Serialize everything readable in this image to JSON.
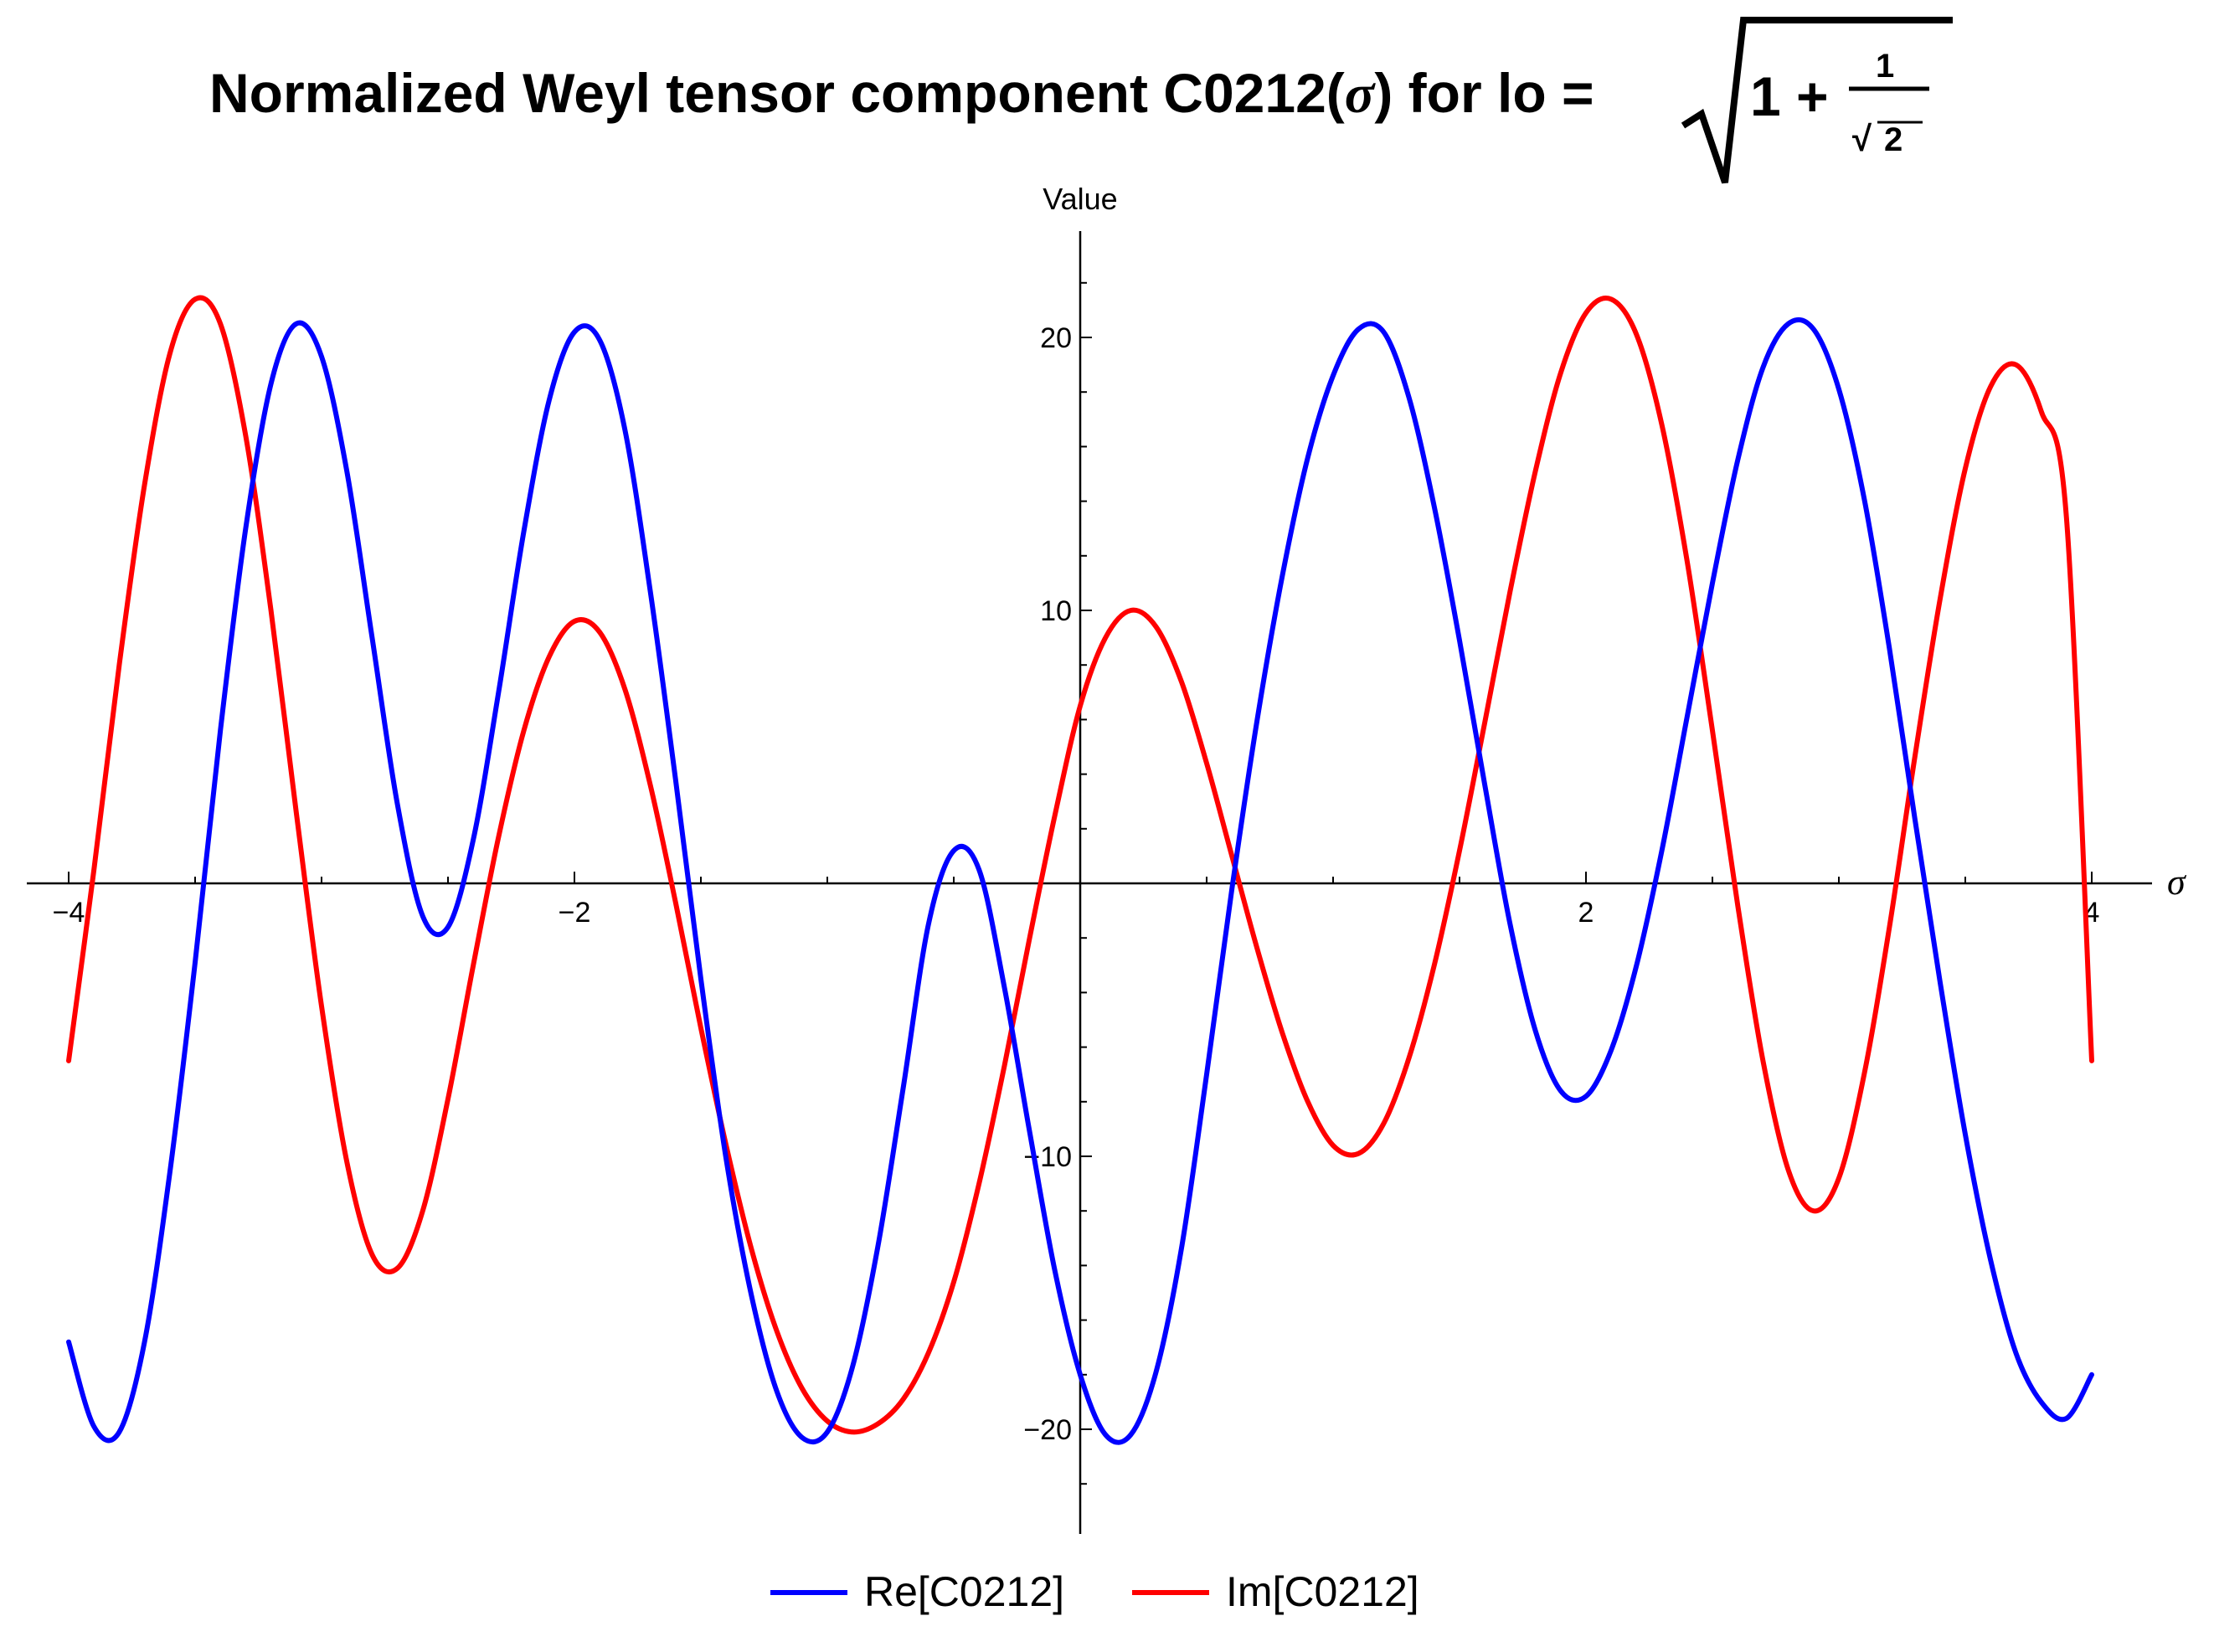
{
  "title": {
    "prefix": "Normalized Weyl tensor component C0212(",
    "sigma": "σ",
    "suffix": ") for lo =",
    "radical_one_plus": "1 +",
    "frac_numerator": "1",
    "frac_den_root": "√",
    "frac_den_value": "2"
  },
  "chart_data": {
    "type": "line",
    "xlabel": "σ",
    "ylabel": "Value",
    "xlim": [
      -4,
      4
    ],
    "ylim": [
      -24,
      24
    ],
    "x_ticks": [
      -4,
      -2,
      2,
      4
    ],
    "x_tick_labels": [
      "−4",
      "−2",
      "2",
      "4"
    ],
    "y_ticks": [
      -20,
      -10,
      10,
      20
    ],
    "y_tick_labels": [
      "−20",
      "−10",
      "10",
      "20"
    ],
    "grid": false,
    "legend_position": "bottom-center",
    "x": [
      -4.0,
      -3.9,
      -3.8,
      -3.7,
      -3.6,
      -3.5,
      -3.4,
      -3.3,
      -3.2,
      -3.1,
      -3.0,
      -2.9,
      -2.8,
      -2.7,
      -2.6,
      -2.5,
      -2.4,
      -2.3,
      -2.2,
      -2.1,
      -2.0,
      -1.9,
      -1.8,
      -1.7,
      -1.6,
      -1.5,
      -1.4,
      -1.3,
      -1.2,
      -1.1,
      -1.0,
      -0.9,
      -0.8,
      -0.7,
      -0.6,
      -0.5,
      -0.4,
      -0.3,
      -0.2,
      -0.1,
      0.0,
      0.1,
      0.2,
      0.3,
      0.4,
      0.5,
      0.6,
      0.7,
      0.8,
      0.9,
      1.0,
      1.1,
      1.2,
      1.3,
      1.4,
      1.5,
      1.6,
      1.7,
      1.8,
      1.9,
      2.0,
      2.1,
      2.2,
      2.3,
      2.4,
      2.5,
      2.6,
      2.7,
      2.8,
      2.9,
      3.0,
      3.1,
      3.2,
      3.3,
      3.4,
      3.5,
      3.6,
      3.7,
      3.8,
      3.9,
      4.0
    ],
    "series": [
      {
        "name": "Re[C0212]",
        "color": "#0000ff",
        "values": [
          -16.8,
          -19.9,
          -20.1,
          -16.8,
          -10.6,
          -2.9,
          5.6,
          13.0,
          18.3,
          20.5,
          19.3,
          15.1,
          9.0,
          2.9,
          -1.2,
          -1.6,
          1.6,
          7.0,
          12.9,
          17.7,
          20.2,
          19.9,
          16.6,
          10.7,
          3.8,
          -3.5,
          -10.1,
          -15.1,
          -18.6,
          -20.3,
          -20.1,
          -17.7,
          -13.3,
          -7.5,
          -1.5,
          1.2,
          0.5,
          -3.8,
          -9.1,
          -14.2,
          -18.0,
          -20.2,
          -20.2,
          -17.9,
          -13.4,
          -7.0,
          -0.2,
          6.0,
          11.3,
          15.6,
          18.6,
          20.3,
          20.2,
          17.8,
          13.8,
          8.9,
          3.6,
          -1.5,
          -5.4,
          -7.6,
          -7.8,
          -6.1,
          -3.0,
          1.2,
          6.1,
          11.0,
          15.5,
          18.9,
          20.5,
          20.3,
          18.1,
          14.1,
          8.6,
          2.4,
          -3.6,
          -9.2,
          -13.8,
          -17.2,
          -19.0,
          -19.6,
          -18.0
        ]
      },
      {
        "name": "Im[C0212]",
        "color": "#ff0000",
        "values": [
          -6.5,
          0.5,
          8.0,
          14.6,
          19.4,
          21.4,
          20.5,
          16.4,
          10.0,
          2.6,
          -4.5,
          -10.2,
          -13.6,
          -14.1,
          -12.0,
          -7.9,
          -3.0,
          1.7,
          5.6,
          8.3,
          9.6,
          9.2,
          7.1,
          3.6,
          -0.7,
          -5.3,
          -9.6,
          -13.4,
          -16.4,
          -18.5,
          -19.7,
          -20.1,
          -19.8,
          -18.9,
          -17.2,
          -14.6,
          -11.0,
          -6.7,
          -2.0,
          2.5,
          6.5,
          9.0,
          10.0,
          9.4,
          7.4,
          4.4,
          1.0,
          -2.4,
          -5.5,
          -8.0,
          -9.6,
          -9.9,
          -8.8,
          -6.4,
          -3.0,
          1.2,
          5.9,
          10.7,
          15.1,
          18.7,
          20.9,
          21.4,
          20.1,
          16.8,
          11.8,
          5.6,
          -0.8,
          -6.5,
          -10.5,
          -12.0,
          -10.8,
          -7.0,
          -1.6,
          4.6,
          10.4,
          15.2,
          18.2,
          19.0,
          17.3,
          13.4,
          -6.5
        ]
      }
    ]
  }
}
